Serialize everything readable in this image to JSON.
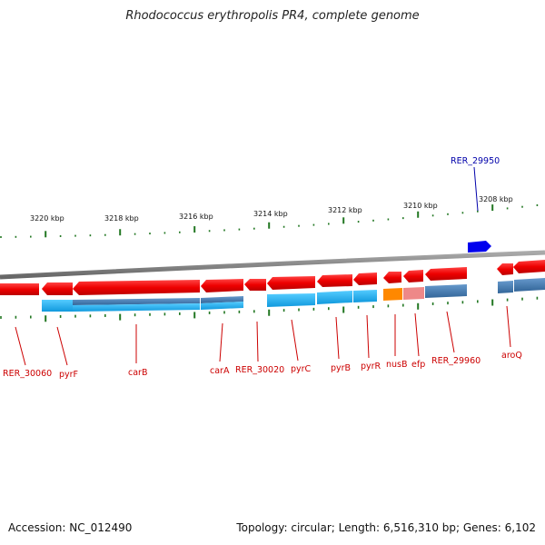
{
  "title": "Rhodococcus erythropolis PR4, complete genome",
  "footer": {
    "accession": "Accession: NC_012490",
    "summary": "Topology: circular; Length: 6,516,310 bp; Genes: 6,102"
  },
  "colors": {
    "forward_gene": "#ee0000",
    "cds": "#22aaee",
    "cds_dark": "#4477aa",
    "highlight_orange": "#ff8800",
    "highlight_pink": "#ee8888",
    "blue_gene": "#0000ee",
    "tick": "#227722",
    "backbone": "#888888"
  },
  "scale": {
    "ticks": [
      {
        "label": "3220 kbp"
      },
      {
        "label": "3218 kbp"
      },
      {
        "label": "3216 kbp"
      },
      {
        "label": "3214 kbp"
      },
      {
        "label": "3212 kbp"
      },
      {
        "label": "3210 kbp"
      },
      {
        "label": "3208 kbp"
      }
    ]
  },
  "genes": [
    {
      "label": "RER_30060",
      "color": "red"
    },
    {
      "label": "pyrF",
      "color": "red"
    },
    {
      "label": "carB",
      "color": "red"
    },
    {
      "label": "carA",
      "color": "red"
    },
    {
      "label": "RER_30020",
      "color": "red"
    },
    {
      "label": "pyrC",
      "color": "red"
    },
    {
      "label": "pyrB",
      "color": "red"
    },
    {
      "label": "pyrR",
      "color": "red"
    },
    {
      "label": "nusB",
      "color": "red"
    },
    {
      "label": "efp",
      "color": "red"
    },
    {
      "label": "RER_29960",
      "color": "red"
    },
    {
      "label": "aroQ",
      "color": "red"
    },
    {
      "label": "RER_29950",
      "color": "blue"
    }
  ]
}
